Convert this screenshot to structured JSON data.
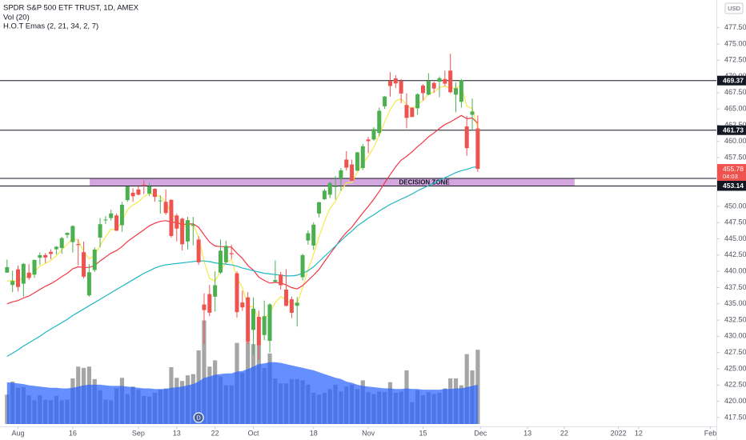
{
  "chart_data": {
    "type": "candlestick",
    "title": "SPDR S&P 500 ETF TRUST, 1D, AMEX",
    "currency": "USD",
    "up_color": "#4caf50",
    "down_color": "#ef5350",
    "xlim": [
      -1.29,
      129.6
    ],
    "xticks": [
      {
        "value": 2,
        "label": "Aug"
      },
      {
        "value": 12,
        "label": "16"
      },
      {
        "value": 24,
        "label": "Sep"
      },
      {
        "value": 31,
        "label": "13"
      },
      {
        "value": 38,
        "label": "22"
      },
      {
        "value": 45,
        "label": "Oct"
      },
      {
        "value": 56,
        "label": "18"
      },
      {
        "value": 66,
        "label": "Nov"
      },
      {
        "value": 76,
        "label": "15"
      },
      {
        "value": 86.5,
        "label": "Dec"
      },
      {
        "value": 95.1,
        "label": "13"
      },
      {
        "value": 101.8,
        "label": "22"
      },
      {
        "value": 111.7,
        "label": "2022"
      },
      {
        "value": 115.4,
        "label": "12"
      },
      {
        "value": 128.5,
        "label": "Feb"
      }
    ],
    "ylim": [
      416.13,
      481.77
    ],
    "yticks": [
      {
        "value": 477.5,
        "label": "477.50"
      },
      {
        "value": 475,
        "label": "475.00"
      },
      {
        "value": 472.5,
        "label": "472.50"
      },
      {
        "value": 470,
        "label": "470.00"
      },
      {
        "value": 467.5,
        "label": "467.50"
      },
      {
        "value": 465,
        "label": "465.00"
      },
      {
        "value": 462.5,
        "label": "462.50"
      },
      {
        "value": 460,
        "label": "460.00"
      },
      {
        "value": 457.5,
        "label": "457.50"
      },
      {
        "value": 450,
        "label": "450.00"
      },
      {
        "value": 447.5,
        "label": "447.50"
      },
      {
        "value": 445,
        "label": "445.00"
      },
      {
        "value": 442.5,
        "label": "442.50"
      },
      {
        "value": 440,
        "label": "440.00"
      },
      {
        "value": 437.5,
        "label": "437.50"
      },
      {
        "value": 435,
        "label": "435.00"
      },
      {
        "value": 432.5,
        "label": "432.50"
      },
      {
        "value": 430,
        "label": "430.00"
      },
      {
        "value": 427.5,
        "label": "427.50"
      },
      {
        "value": 425,
        "label": "425.00"
      },
      {
        "value": 422.5,
        "label": "422.50"
      },
      {
        "value": 420,
        "label": "420.00"
      },
      {
        "value": 417.5,
        "label": "417.50"
      }
    ],
    "open": [
      439.8,
      437.9,
      440.3,
      438.1,
      439.8,
      439.5,
      442.1,
      442.5,
      443.0,
      443.4,
      443.6,
      445.6,
      444.5,
      444.2,
      442.96,
      436.3,
      440.2,
      445.2,
      447.97,
      448.2,
      448.6,
      447.1,
      450.97,
      452.1,
      452.6,
      453.3,
      451.98,
      452.7,
      450.9,
      450.7,
      451.0,
      448.6,
      448.1,
      444.6,
      447.0,
      444.9,
      434.9,
      436.5,
      436.1,
      439.8,
      441.4,
      442.8,
      439.7,
      435.2,
      436.0,
      430.98,
      433.0,
      430.2,
      429.3,
      438.4,
      439.5,
      437.2,
      435.7,
      434.7,
      439.1,
      444.75,
      443.97,
      448.9,
      451.1,
      451.8,
      453.1,
      454.3,
      457.2,
      456.45,
      455.5,
      455.9,
      460.3,
      460.3,
      461.3,
      465.4,
      469.3,
      469.7,
      469.3,
      465.6,
      465.2,
      465.1,
      468.6,
      467.2,
      469.0,
      469.2,
      469.6,
      470.9,
      467.2,
      466.1,
      462.3,
      464.1,
      462.0
    ],
    "high": [
      441.8,
      440.1,
      440.9,
      441.3,
      441.1,
      441.8,
      442.9,
      442.8,
      443.4,
      443.9,
      445.3,
      446.0,
      447.1,
      444.96,
      444.6,
      441.1,
      443.7,
      448.2,
      448.5,
      449.5,
      448.9,
      450.7,
      453.1,
      452.8,
      453.1,
      454.05,
      453.6,
      452.8,
      451.7,
      452.6,
      451.1,
      448.9,
      448.3,
      448.4,
      448.4,
      445.4,
      436.6,
      437.9,
      440.0,
      444.9,
      444.7,
      444.1,
      440.0,
      437.0,
      436.8,
      436.0,
      433.96,
      435.5,
      435.1,
      441.7,
      439.9,
      440.3,
      436.1,
      436.05,
      442.7,
      446.3,
      447.55,
      450.7,
      452.7,
      453.8,
      454.7,
      455.9,
      458.5,
      457.2,
      458.4,
      459.6,
      460.7,
      462.2,
      465.2,
      467.0,
      470.65,
      470.2,
      469.6,
      467.4,
      465.3,
      467.4,
      468.8,
      470.5,
      469.2,
      470.0,
      470.9,
      473.5,
      469.1,
      469.6,
      463.9,
      466.6,
      464.0
    ],
    "low": [
      439.8,
      436.8,
      436.9,
      436.1,
      438.7,
      439.0,
      441.0,
      441.3,
      441.9,
      442.6,
      442.7,
      445.1,
      442.9,
      440.9,
      438.9,
      436.1,
      439.9,
      443.7,
      447.3,
      447.8,
      446.2,
      446.1,
      450.7,
      450.7,
      451.7,
      451.9,
      451.6,
      450.7,
      448.9,
      448.7,
      445.2,
      444.6,
      443.2,
      443.4,
      444.0,
      441.0,
      428.8,
      433.1,
      433.8,
      439.6,
      441.2,
      441.9,
      432.9,
      433.9,
      428.8,
      427.2,
      426.4,
      429.4,
      427.5,
      438.2,
      437.2,
      434.6,
      432.8,
      431.5,
      438.6,
      444.1,
      443.3,
      448.3,
      451.0,
      451.3,
      451.05,
      452.4,
      455.5,
      453.9,
      455.45,
      455.6,
      458.2,
      460.1,
      460.8,
      464.99,
      466.9,
      468.2,
      465.9,
      462.0,
      463.7,
      464.1,
      466.3,
      467.1,
      467.5,
      466.8,
      468.5,
      467.4,
      464.5,
      465.2,
      457.8,
      461.7,
      455.3
    ],
    "close": [
      440.65,
      438.51,
      437.59,
      441.15,
      438.98,
      441.76,
      442.49,
      442.13,
      442.68,
      443.78,
      445.11,
      445.92,
      446.97,
      444.04,
      439.18,
      439.86,
      443.36,
      447.26,
      447.97,
      448.91,
      446.26,
      450.25,
      453.06,
      451.56,
      451.8,
      453.19,
      453.08,
      451.46,
      450.91,
      448.98,
      445.44,
      446.58,
      444.17,
      447.88,
      447.17,
      441.4,
      434.04,
      433.63,
      437.86,
      443.18,
      443.91,
      442.64,
      433.72,
      434.45,
      429.14,
      434.24,
      428.64,
      433.1,
      434.9,
      438.66,
      437.86,
      434.69,
      433.62,
      435.18,
      442.5,
      445.87,
      447.19,
      450.64,
      452.41,
      453.59,
      453.12,
      455.55,
      455.96,
      453.94,
      458.32,
      459.25,
      460.04,
      461.9,
      464.72,
      466.91,
      468.53,
      468.93,
      467.38,
      463.62,
      463.77,
      467.27,
      467.43,
      469.28,
      468.14,
      469.73,
      468.89,
      467.57,
      468.19,
      469.44,
      458.97,
      464.6,
      455.78
    ],
    "volume": {
      "label": "Vol (20)",
      "color": "#a6a6a6",
      "ma_color": "#2962ff",
      "values": [
        47,
        68,
        58,
        59,
        46,
        38,
        46,
        39,
        38,
        45,
        38,
        39,
        73,
        92,
        90,
        92,
        72,
        54,
        39,
        38,
        57,
        74,
        48,
        60,
        55,
        45,
        44,
        50,
        55,
        57,
        91,
        74,
        69,
        78,
        80,
        118,
        166,
        92,
        102,
        76,
        62,
        62,
        130,
        82,
        131,
        128,
        128,
        90,
        113,
        73,
        65,
        65,
        72,
        72,
        70,
        63,
        50,
        47,
        50,
        56,
        63,
        52,
        60,
        63,
        56,
        70,
        51,
        48,
        52,
        51,
        67,
        50,
        52,
        86,
        35,
        54,
        46,
        51,
        48,
        50,
        57,
        73,
        73,
        62,
        112,
        86,
        119
      ],
      "ma": [
        67,
        66,
        65,
        64,
        62,
        61,
        60,
        59,
        58,
        58,
        57,
        57,
        58,
        60,
        62,
        63,
        63,
        63,
        62,
        61,
        61,
        61,
        60,
        59,
        58,
        57,
        57,
        56,
        56,
        56,
        58,
        59,
        60,
        62,
        64,
        68,
        74,
        76,
        79,
        80,
        81,
        81,
        84,
        85,
        88,
        92,
        96,
        97,
        99,
        99,
        98,
        96,
        94,
        92,
        90,
        88,
        86,
        83,
        80,
        77,
        74,
        72,
        68,
        66,
        63,
        61,
        60,
        59,
        58,
        57,
        57,
        56,
        56,
        57,
        56,
        56,
        55,
        55,
        55,
        55,
        56,
        56,
        57,
        57,
        59,
        61,
        63
      ]
    },
    "ema": {
      "label": "H.O.T Emas (2, 21, 34, 2, 7)",
      "series": [
        {
          "color": "#f5e94a",
          "values": [
            438.5,
            438.6,
            438.3,
            439.2,
            439.1,
            439.9,
            440.8,
            441.2,
            441.7,
            442.4,
            443.3,
            444.2,
            445.1,
            444.8,
            443.0,
            441.9,
            442.4,
            444.0,
            445.3,
            446.5,
            446.4,
            447.7,
            449.5,
            450.2,
            450.7,
            451.5,
            452.0,
            451.8,
            451.5,
            450.7,
            448.9,
            448.1,
            446.8,
            447.2,
            447.2,
            445.3,
            441.5,
            438.9,
            438.5,
            440.1,
            441.4,
            441.8,
            439.1,
            437.5,
            434.7,
            434.5,
            432.6,
            432.8,
            433.5,
            435.2,
            436.1,
            435.6,
            435.0,
            435.0,
            437.5,
            440.3,
            442.6,
            445.3,
            447.7,
            449.7,
            450.8,
            452.4,
            453.6,
            453.7,
            455.2,
            456.6,
            457.7,
            459.1,
            461.0,
            463.0,
            464.9,
            466.2,
            466.6,
            465.6,
            465.0,
            465.7,
            466.3,
            467.3,
            467.6,
            468.3,
            468.5,
            468.2,
            468.2,
            468.6,
            465.4,
            465.1,
            462.0
          ]
        },
        {
          "color": "#f23645",
          "values": [
            435.0,
            435.3,
            435.5,
            435.9,
            436.2,
            436.7,
            437.2,
            437.7,
            438.1,
            438.6,
            439.2,
            439.7,
            440.4,
            440.7,
            440.6,
            440.6,
            440.9,
            441.6,
            442.2,
            442.8,
            443.2,
            443.8,
            444.6,
            445.2,
            445.8,
            446.4,
            447.0,
            447.4,
            447.7,
            447.8,
            447.6,
            447.5,
            447.2,
            447.3,
            447.3,
            446.8,
            445.6,
            444.5,
            443.9,
            443.8,
            443.8,
            443.7,
            442.8,
            442.0,
            440.9,
            440.2,
            439.1,
            438.6,
            438.2,
            438.3,
            438.2,
            437.9,
            437.5,
            437.3,
            437.8,
            438.6,
            439.4,
            440.3,
            441.5,
            442.7,
            443.8,
            445.0,
            446.0,
            446.8,
            447.9,
            449.0,
            450.0,
            451.1,
            452.3,
            453.6,
            454.9,
            456.1,
            457.1,
            457.7,
            458.4,
            459.2,
            459.9,
            460.7,
            461.3,
            462.0,
            462.6,
            463.0,
            463.5,
            464.0,
            463.5,
            463.6,
            462.8
          ]
        },
        {
          "color": "#1fb7c4",
          "values": [
            426.9,
            427.4,
            427.9,
            428.5,
            429.0,
            429.5,
            430.0,
            430.6,
            431.1,
            431.6,
            432.1,
            432.6,
            433.2,
            433.7,
            434.2,
            434.7,
            435.2,
            435.7,
            436.2,
            436.7,
            437.2,
            437.7,
            438.2,
            438.7,
            439.2,
            439.7,
            440.1,
            440.5,
            440.8,
            441.0,
            441.1,
            441.2,
            441.3,
            441.4,
            441.5,
            441.6,
            441.6,
            441.5,
            441.3,
            441.2,
            441.1,
            441.0,
            440.8,
            440.5,
            440.3,
            440.1,
            439.9,
            439.7,
            439.6,
            439.5,
            439.4,
            439.3,
            439.3,
            439.4,
            439.7,
            440.1,
            440.7,
            441.5,
            442.3,
            443.1,
            443.9,
            444.7,
            445.5,
            446.2,
            447.0,
            447.6,
            448.2,
            448.7,
            449.3,
            449.8,
            450.3,
            450.7,
            451.1,
            451.5,
            451.9,
            452.4,
            452.8,
            453.2,
            453.6,
            454.0,
            454.4,
            454.8,
            455.2,
            455.5,
            455.7,
            456.0,
            456.1
          ]
        }
      ]
    },
    "hlines": [
      469.37,
      461.73,
      454.31,
      453.14
    ],
    "zone": {
      "label": "DECISION ZONE",
      "xlim": [
        15.1,
        103.7
      ],
      "ylim": [
        453.14,
        454.31
      ],
      "color": "#d4a6e0"
    },
    "last_price": 455.78,
    "countdown": "04:03",
    "dividend": {
      "x": 35,
      "label": "D"
    }
  }
}
